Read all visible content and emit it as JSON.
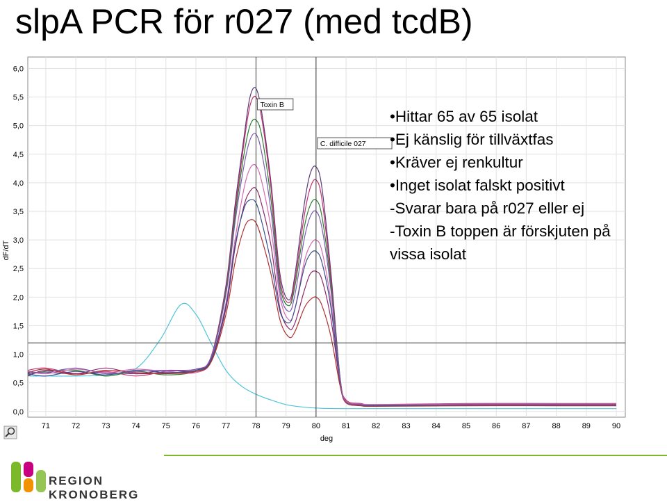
{
  "slide": {
    "title": "slpA PCR för r027 (med tcdB)",
    "bullets": [
      "•Hittar 65 av 65 isolat",
      "•Ej känslig för tillväxtfas",
      "•Kräver ej renkultur",
      "•Inget isolat falskt positivt",
      "-Svarar bara på r027 eller ej",
      "-Toxin B toppen är förskjuten på vissa isolat"
    ],
    "logo": {
      "line1": "REGION",
      "line2": "KRONOBERG",
      "colors": [
        "#7bb82a",
        "#c6007e",
        "#f39200"
      ]
    }
  },
  "chart_data": {
    "type": "line",
    "xlabel": "deg",
    "ylabel": "dF/dT",
    "xticks": [
      "71",
      "72",
      "73",
      "74",
      "75",
      "76",
      "77",
      "78",
      "79",
      "80",
      "81",
      "82",
      "83",
      "84",
      "85",
      "86",
      "87",
      "88",
      "89",
      "90"
    ],
    "yticks": [
      "0,0",
      "0,5",
      "1,0",
      "1,5",
      "2,0",
      "2,5",
      "3,0",
      "3,5",
      "4,0",
      "4,5",
      "5,0",
      "5,5",
      "6,0"
    ],
    "xlim": [
      70.4,
      90.3
    ],
    "ylim": [
      -0.1,
      6.2
    ],
    "grid": true,
    "threshold": 1.2,
    "markers": [
      {
        "x": 78.0,
        "label": "Toxin B"
      },
      {
        "x": 80.0,
        "label": "C. difficile 027"
      }
    ],
    "series": [
      {
        "color": "#4ec3d9",
        "x": [
          70.4,
          72,
          73,
          74,
          74.8,
          75.5,
          76,
          76.5,
          77,
          77.5,
          78,
          78.5,
          79,
          79.5,
          80,
          81,
          85,
          90
        ],
        "y": [
          0.62,
          0.62,
          0.64,
          0.75,
          1.25,
          1.87,
          1.7,
          1.2,
          0.72,
          0.45,
          0.3,
          0.2,
          0.12,
          0.08,
          0.06,
          0.05,
          0.05,
          0.05
        ]
      },
      {
        "color": "#5a3a7a",
        "x": [
          70.4,
          71,
          72,
          73,
          74,
          75,
          76,
          76.5,
          77,
          77.3,
          77.6,
          77.8,
          78,
          78.2,
          78.5,
          78.8,
          79.1,
          79.3,
          79.6,
          79.8,
          80,
          80.2,
          80.5,
          80.8,
          81,
          81.5,
          82,
          85,
          88,
          90
        ],
        "y": [
          0.67,
          0.68,
          0.66,
          0.68,
          0.66,
          0.67,
          0.72,
          0.95,
          2.2,
          3.6,
          4.8,
          5.5,
          5.65,
          5.2,
          4.0,
          2.4,
          1.95,
          2.4,
          3.6,
          4.15,
          4.28,
          3.9,
          2.4,
          0.6,
          0.18,
          0.12,
          0.1,
          0.12,
          0.12,
          0.12
        ]
      },
      {
        "color": "#c0306a",
        "x": [
          70.4,
          71,
          72,
          73,
          74,
          75,
          76,
          76.5,
          77,
          77.3,
          77.6,
          77.8,
          78,
          78.2,
          78.5,
          78.8,
          79.1,
          79.3,
          79.6,
          79.8,
          80,
          80.2,
          80.5,
          80.8,
          81,
          81.5,
          82,
          85,
          88,
          90
        ],
        "y": [
          0.72,
          0.76,
          0.66,
          0.7,
          0.62,
          0.7,
          0.74,
          0.95,
          2.15,
          3.5,
          4.7,
          5.35,
          5.5,
          5.1,
          3.9,
          2.3,
          1.9,
          2.3,
          3.4,
          3.9,
          4.05,
          3.7,
          2.3,
          0.6,
          0.2,
          0.14,
          0.12,
          0.14,
          0.14,
          0.14
        ]
      },
      {
        "color": "#2e7d32",
        "x": [
          70.4,
          71,
          72,
          73,
          74,
          75,
          76,
          76.5,
          77,
          77.3,
          77.6,
          77.8,
          78,
          78.2,
          78.5,
          78.8,
          79.1,
          79.3,
          79.6,
          79.8,
          80,
          80.2,
          80.5,
          80.8,
          81,
          81.5,
          82,
          85,
          88,
          90
        ],
        "y": [
          0.64,
          0.7,
          0.72,
          0.62,
          0.7,
          0.64,
          0.7,
          0.92,
          2.1,
          3.4,
          4.5,
          5.0,
          5.1,
          4.8,
          3.7,
          2.2,
          1.85,
          2.2,
          3.2,
          3.6,
          3.7,
          3.4,
          2.2,
          0.58,
          0.16,
          0.11,
          0.1,
          0.11,
          0.11,
          0.11
        ]
      },
      {
        "color": "#d46ab2",
        "x": [
          70.4,
          71,
          72,
          73,
          74,
          75,
          76,
          76.5,
          77,
          77.3,
          77.6,
          77.8,
          78,
          78.2,
          78.5,
          78.8,
          79.1,
          79.3,
          79.6,
          79.8,
          80,
          80.2,
          80.5,
          80.8,
          81,
          81.5,
          82,
          85,
          88,
          90
        ],
        "y": [
          0.7,
          0.66,
          0.74,
          0.68,
          0.74,
          0.7,
          0.68,
          0.9,
          1.9,
          3.0,
          3.9,
          4.25,
          4.3,
          4.0,
          3.2,
          2.0,
          1.6,
          1.8,
          2.6,
          2.9,
          3.0,
          2.8,
          1.9,
          0.55,
          0.18,
          0.13,
          0.12,
          0.13,
          0.13,
          0.13
        ]
      },
      {
        "color": "#8e2a6a",
        "x": [
          70.4,
          71,
          72,
          73,
          74,
          75,
          76,
          76.5,
          77,
          77.3,
          77.6,
          77.8,
          78,
          78.2,
          78.5,
          78.8,
          79.1,
          79.3,
          79.6,
          79.8,
          80,
          80.2,
          80.5,
          80.8,
          81,
          81.5,
          82,
          85,
          88,
          90
        ],
        "y": [
          0.62,
          0.72,
          0.66,
          0.76,
          0.66,
          0.72,
          0.7,
          0.88,
          1.8,
          2.85,
          3.6,
          3.85,
          3.9,
          3.6,
          2.9,
          1.8,
          1.45,
          1.55,
          2.1,
          2.4,
          2.45,
          2.3,
          1.6,
          0.5,
          0.17,
          0.12,
          0.11,
          0.12,
          0.12,
          0.12
        ]
      },
      {
        "color": "#3a4f8c",
        "x": [
          70.4,
          71,
          72,
          73,
          74,
          75,
          76,
          76.5,
          77,
          77.3,
          77.6,
          77.8,
          78,
          78.2,
          78.5,
          78.8,
          79.1,
          79.3,
          79.6,
          79.8,
          80,
          80.2,
          80.5,
          80.8,
          81,
          81.5,
          82,
          85,
          88,
          90
        ],
        "y": [
          0.66,
          0.62,
          0.7,
          0.64,
          0.72,
          0.68,
          0.72,
          0.9,
          1.85,
          2.9,
          3.55,
          3.7,
          3.65,
          3.3,
          2.6,
          1.75,
          1.55,
          1.8,
          2.5,
          2.75,
          2.8,
          2.6,
          1.8,
          0.52,
          0.16,
          0.11,
          0.1,
          0.11,
          0.11,
          0.11
        ]
      },
      {
        "color": "#b03030",
        "x": [
          70.4,
          71,
          72,
          73,
          74,
          75,
          76,
          76.5,
          77,
          77.3,
          77.6,
          77.8,
          78,
          78.2,
          78.5,
          78.8,
          79.1,
          79.3,
          79.6,
          79.8,
          80,
          80.2,
          80.5,
          80.8,
          81,
          81.5,
          82,
          85,
          88,
          90
        ],
        "y": [
          0.68,
          0.74,
          0.64,
          0.72,
          0.68,
          0.66,
          0.7,
          0.86,
          1.7,
          2.6,
          3.2,
          3.35,
          3.3,
          3.0,
          2.4,
          1.6,
          1.3,
          1.4,
          1.8,
          1.95,
          2.0,
          1.85,
          1.3,
          0.45,
          0.15,
          0.1,
          0.09,
          0.1,
          0.1,
          0.1
        ]
      },
      {
        "color": "#7a5ab0",
        "x": [
          70.4,
          71,
          72,
          73,
          74,
          75,
          76,
          76.5,
          77,
          77.3,
          77.6,
          77.8,
          78,
          78.2,
          78.5,
          78.8,
          79.1,
          79.3,
          79.6,
          79.8,
          80,
          80.2,
          80.5,
          80.8,
          81,
          81.5,
          82,
          85,
          88,
          90
        ],
        "y": [
          0.7,
          0.68,
          0.76,
          0.66,
          0.7,
          0.72,
          0.74,
          0.94,
          2.05,
          3.3,
          4.3,
          4.75,
          4.85,
          4.5,
          3.5,
          2.1,
          1.75,
          2.05,
          3.0,
          3.4,
          3.5,
          3.2,
          2.1,
          0.56,
          0.17,
          0.12,
          0.11,
          0.12,
          0.12,
          0.12
        ]
      }
    ]
  }
}
